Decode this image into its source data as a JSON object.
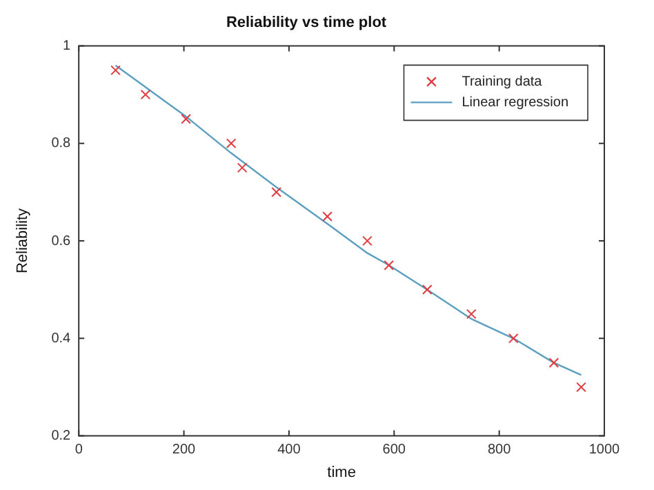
{
  "chart_data": {
    "type": "scatter",
    "title": "Reliability vs time plot",
    "xlabel": "time",
    "ylabel": "Reliability",
    "xlim": [
      0,
      1000
    ],
    "xticks": [
      0,
      200,
      400,
      600,
      800,
      1000
    ],
    "ylim": [
      0.2,
      1
    ],
    "yticks": [
      0.2,
      0.4,
      0.6,
      0.8,
      1
    ],
    "grid": false,
    "legend": "top right",
    "series": [
      {
        "name": "Training data",
        "type": "scatter",
        "marker": "cross",
        "color": "#e0393e",
        "x": [
          70,
          127,
          204,
          290,
          311,
          376,
          473,
          549,
          590,
          663,
          747,
          827,
          904,
          956
        ],
        "values": [
          0.95,
          0.9,
          0.85,
          0.8,
          0.75,
          0.7,
          0.65,
          0.6,
          0.55,
          0.5,
          0.45,
          0.4,
          0.35,
          0.3
        ]
      },
      {
        "name": "Linear regression",
        "type": "line",
        "marker": "none",
        "line_style": "solid",
        "color": "#5a9fc0",
        "x": [
          70,
          204,
          290,
          376,
          473,
          549,
          590,
          663,
          747,
          827,
          904,
          956
        ],
        "values": [
          0.96,
          0.855,
          0.78,
          0.71,
          0.635,
          0.575,
          0.55,
          0.5,
          0.44,
          0.4,
          0.35,
          0.325
        ]
      }
    ]
  }
}
